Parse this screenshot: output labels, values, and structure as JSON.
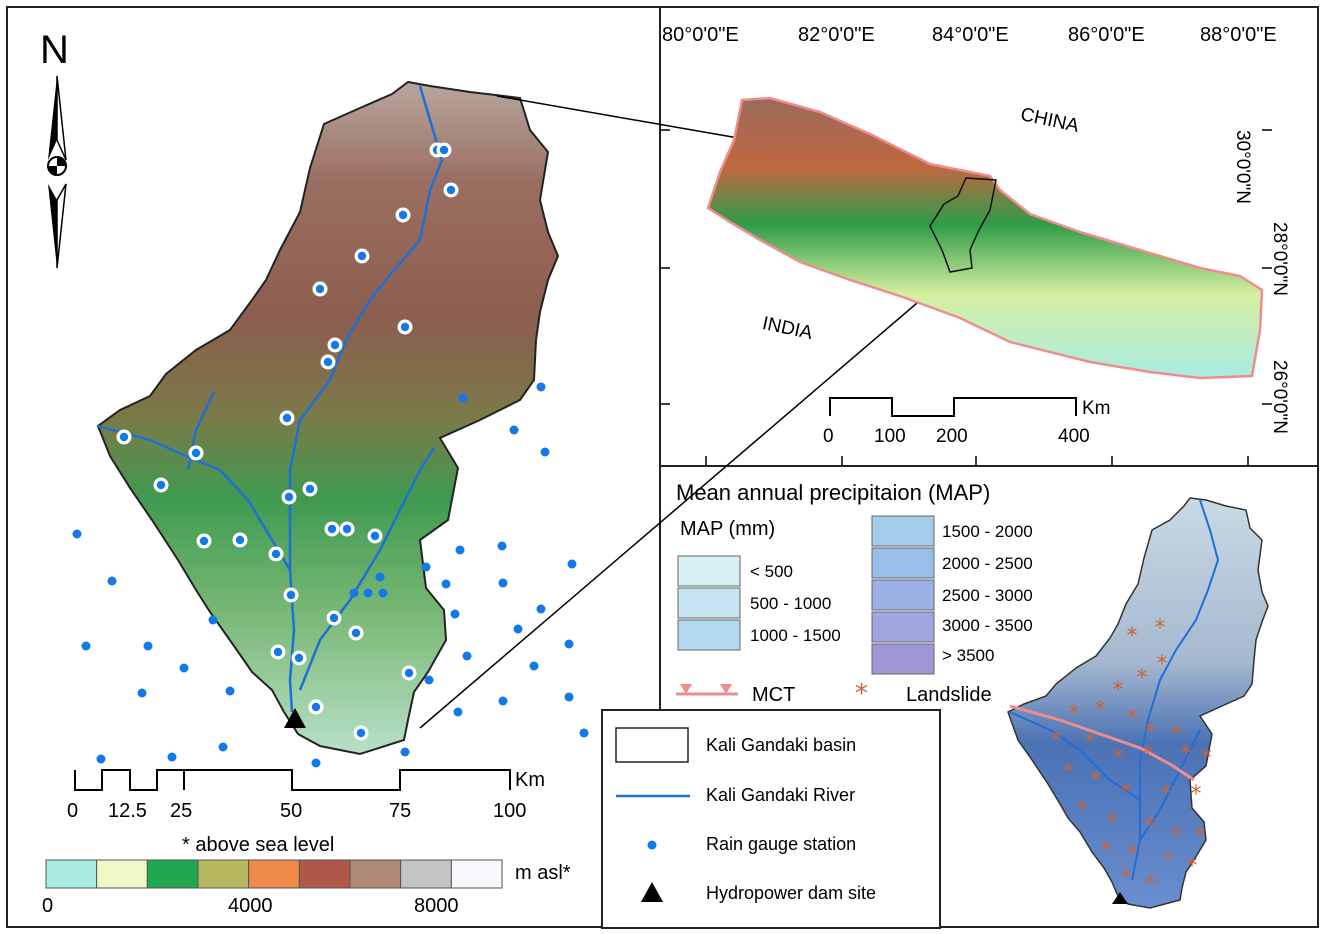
{
  "north_label": "N",
  "left_map": {
    "scale": {
      "unit": "Km",
      "ticks": [
        "0",
        "12.5",
        "25",
        "50",
        "75",
        "100"
      ]
    },
    "elevation_legend": {
      "note": "* above sea level",
      "unit": "m asl*",
      "ticks": [
        "0",
        "4000",
        "8000"
      ],
      "colors": [
        "#a8ece0",
        "#eef8c6",
        "#20a850",
        "#b8b860",
        "#ef8a4a",
        "#b05848",
        "#b08878",
        "#c4c4c4",
        "#f8f8fc"
      ]
    }
  },
  "overview_map": {
    "lon_labels": [
      "80°0'0\"E",
      "82°0'0\"E",
      "84°0'0\"E",
      "86°0'0\"E",
      "88°0'0\"E"
    ],
    "lat_labels": [
      "30°0'0\"N",
      "28°0'0\"N",
      "26°0'0\"N"
    ],
    "country_labels": {
      "china": "CHINA",
      "india": "INDIA"
    },
    "scale": {
      "unit": "Km",
      "ticks": [
        "0",
        "100",
        "200",
        "400"
      ]
    }
  },
  "map_legend": {
    "title": "Mean annual precipitaion (MAP)",
    "subtitle": "MAP (mm)",
    "classes": [
      {
        "label": "< 500",
        "color": "#d6f0f4"
      },
      {
        "label": "500 - 1000",
        "color": "#c6e4f2"
      },
      {
        "label": "1000 - 1500",
        "color": "#b4d8f0"
      },
      {
        "label": "1500 - 2000",
        "color": "#a4cceb"
      },
      {
        "label": "2000 - 2500",
        "color": "#98bfe8"
      },
      {
        "label": "2500 - 3000",
        "color": "#9cb0e6"
      },
      {
        "label": "3000 - 3500",
        "color": "#a2a6e0"
      },
      {
        "label": "> 3500",
        "color": "#a098d6"
      }
    ],
    "mct_label": "MCT",
    "landslide_label": "Landslide"
  },
  "main_legend": {
    "items": [
      {
        "label": "Kali Gandaki basin"
      },
      {
        "label": "Kali Gandaki River"
      },
      {
        "label": "Rain gauge station"
      },
      {
        "label": "Hydropower dam site"
      }
    ]
  },
  "colors": {
    "river": "#1f6fd8",
    "gauge": "#1478e6",
    "mct": "#f08c8c",
    "landslide": "#c8643c"
  }
}
